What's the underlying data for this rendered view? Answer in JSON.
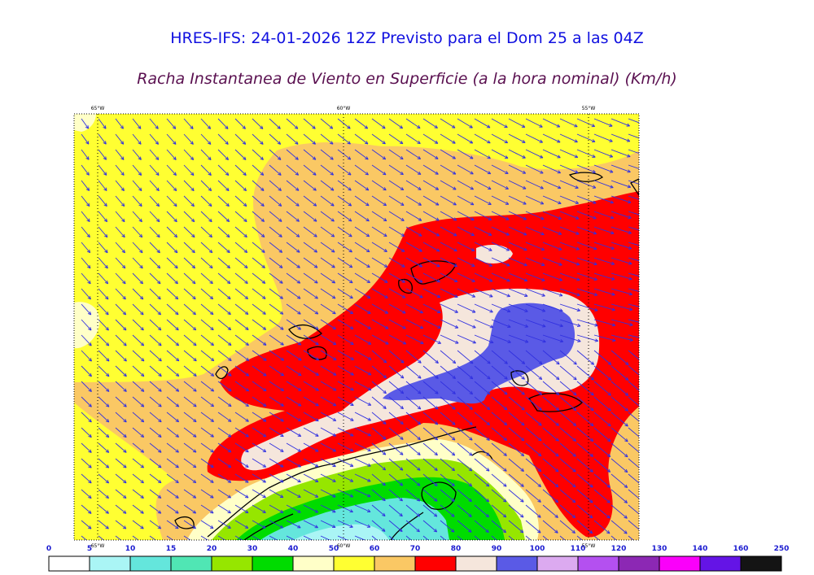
{
  "header": {
    "title": "HRES-IFS: 24-01-2026 12Z Previsto para el Dom 25 a las 04Z",
    "subtitle": "Racha Instantanea de Viento en Superficie (a la hora nominal) (Km/h)"
  },
  "map": {
    "top_lon_labels": [
      "65°W",
      "60°W",
      "55°W"
    ],
    "bottom_lon_labels": [
      "65°W",
      "60°W",
      "55°W"
    ],
    "wind_arrow_color": "#3030e0",
    "coastline_color": "#000000"
  },
  "legend": {
    "ticks": [
      "0",
      "5",
      "10",
      "15",
      "20",
      "30",
      "40",
      "50",
      "60",
      "70",
      "80",
      "90",
      "100",
      "110",
      "120",
      "130",
      "140",
      "160",
      "250"
    ],
    "colors": [
      "#ffffff",
      "#aaf5f5",
      "#64e6dc",
      "#50e6b4",
      "#96e600",
      "#00dc00",
      "#ffffc8",
      "#ffff32",
      "#fac864",
      "#ff0000",
      "#f5e6dc",
      "#5a5ae6",
      "#dcaaf0",
      "#b450f0",
      "#8c28b4",
      "#fa00fa",
      "#6414e6",
      "#141414"
    ]
  }
}
